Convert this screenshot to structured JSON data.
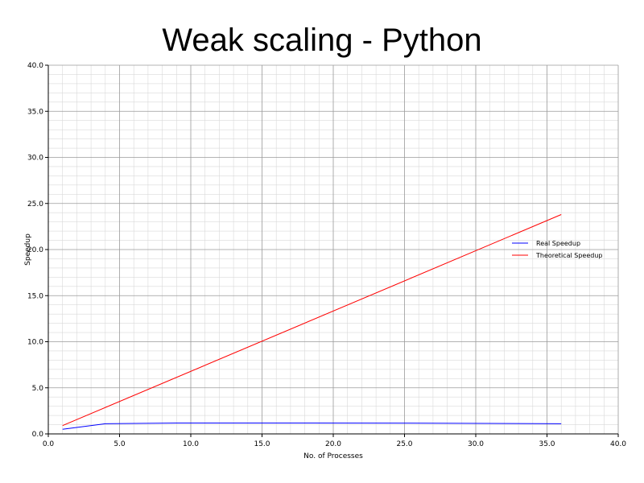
{
  "chart_data": {
    "type": "line",
    "title": "Weak scaling - Python",
    "xlabel": "No. of Processes",
    "ylabel": "Speedup",
    "xlim": [
      0,
      40
    ],
    "ylim": [
      0,
      40
    ],
    "xticks": [
      0,
      5,
      10,
      15,
      20,
      25,
      30,
      35,
      40
    ],
    "yticks": [
      0,
      5,
      10,
      15,
      20,
      25,
      30,
      35,
      40
    ],
    "xtick_labels": [
      "0.0",
      "5.0",
      "10.0",
      "15.0",
      "20.0",
      "25.0",
      "30.0",
      "35.0",
      "40.0"
    ],
    "ytick_labels": [
      "0.0",
      "5.0",
      "10.0",
      "15.0",
      "20.0",
      "25.0",
      "30.0",
      "35.0",
      "40.0"
    ],
    "grid": true,
    "legend_position": "right",
    "series": [
      {
        "name": "Real Speedup",
        "color": "#0000ff",
        "x": [
          1,
          4,
          9,
          16,
          25,
          36
        ],
        "y": [
          0.5,
          1.1,
          1.18,
          1.18,
          1.17,
          1.1
        ]
      },
      {
        "name": "Theoretical Speedup",
        "color": "#ff0000",
        "x": [
          1,
          36
        ],
        "y": [
          0.9,
          23.8
        ]
      }
    ]
  }
}
